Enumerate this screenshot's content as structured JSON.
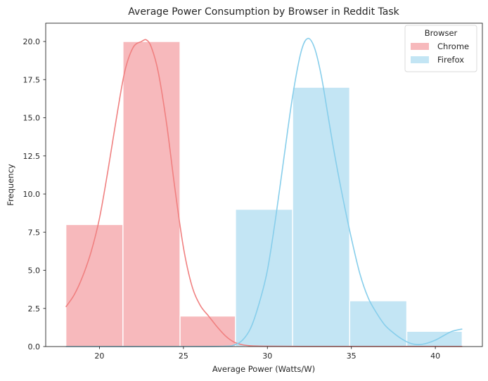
{
  "chart_data": {
    "type": "histogram",
    "title": "Average Power Consumption by Browser in Reddit Task",
    "xlabel": "Average Power (Watts/W)",
    "ylabel": "Frequency",
    "xlim": [
      16.8,
      42.8
    ],
    "ylim": [
      0,
      21.2
    ],
    "xticks": [
      20,
      25,
      30,
      35,
      40
    ],
    "yticks": [
      0.0,
      2.5,
      5.0,
      7.5,
      10.0,
      12.5,
      15.0,
      17.5,
      20.0
    ],
    "grid": false,
    "legend": {
      "title": "Browser",
      "placement": "top-right"
    },
    "series": [
      {
        "name": "Chrome",
        "bar_color": "#f7b9bc",
        "kde_color": "#f08080",
        "bins": [
          {
            "x0": 18.0,
            "x1": 21.4,
            "count": 8
          },
          {
            "x0": 21.4,
            "x1": 24.8,
            "count": 20
          },
          {
            "x0": 24.8,
            "x1": 28.1,
            "count": 2
          }
        ],
        "kde": [
          [
            18.0,
            2.6
          ],
          [
            18.5,
            3.4
          ],
          [
            19.0,
            4.6
          ],
          [
            19.5,
            6.2
          ],
          [
            20.0,
            8.4
          ],
          [
            20.5,
            11.5
          ],
          [
            21.0,
            14.9
          ],
          [
            21.5,
            18.0
          ],
          [
            22.0,
            19.6
          ],
          [
            22.5,
            20.0
          ],
          [
            22.8,
            20.1
          ],
          [
            23.1,
            19.6
          ],
          [
            23.5,
            18.0
          ],
          [
            24.0,
            14.6
          ],
          [
            24.5,
            10.3
          ],
          [
            25.0,
            6.5
          ],
          [
            25.5,
            4.0
          ],
          [
            26.0,
            2.7
          ],
          [
            26.5,
            2.0
          ],
          [
            27.0,
            1.3
          ],
          [
            27.5,
            0.7
          ],
          [
            28.0,
            0.3
          ],
          [
            28.5,
            0.12
          ],
          [
            29.0,
            0.05
          ],
          [
            30.0,
            0.02
          ],
          [
            32.0,
            0.01
          ],
          [
            35.0,
            0.01
          ],
          [
            38.0,
            0.01
          ],
          [
            41.6,
            0.01
          ]
        ]
      },
      {
        "name": "Firefox",
        "bar_color": "#c3e5f4",
        "kde_color": "#87ceeb",
        "bins": [
          {
            "x0": 28.1,
            "x1": 31.5,
            "count": 9
          },
          {
            "x0": 31.5,
            "x1": 34.9,
            "count": 17
          },
          {
            "x0": 34.9,
            "x1": 38.3,
            "count": 3
          },
          {
            "x0": 38.3,
            "x1": 41.6,
            "count": 1
          }
        ],
        "kde": [
          [
            18.0,
            0.0
          ],
          [
            25.0,
            0.0
          ],
          [
            27.5,
            0.02
          ],
          [
            28.0,
            0.1
          ],
          [
            28.5,
            0.4
          ],
          [
            29.0,
            1.2
          ],
          [
            29.5,
            2.8
          ],
          [
            30.0,
            5.0
          ],
          [
            30.5,
            8.5
          ],
          [
            31.0,
            12.5
          ],
          [
            31.5,
            16.4
          ],
          [
            32.0,
            19.3
          ],
          [
            32.4,
            20.2
          ],
          [
            32.8,
            19.6
          ],
          [
            33.2,
            17.8
          ],
          [
            33.6,
            15.2
          ],
          [
            34.0,
            12.6
          ],
          [
            34.5,
            9.7
          ],
          [
            35.0,
            7.1
          ],
          [
            35.5,
            4.8
          ],
          [
            36.0,
            3.2
          ],
          [
            36.5,
            2.2
          ],
          [
            37.0,
            1.4
          ],
          [
            37.5,
            0.9
          ],
          [
            38.0,
            0.5
          ],
          [
            38.5,
            0.22
          ],
          [
            39.0,
            0.13
          ],
          [
            39.5,
            0.22
          ],
          [
            40.0,
            0.42
          ],
          [
            40.5,
            0.72
          ],
          [
            41.0,
            1.0
          ],
          [
            41.6,
            1.15
          ]
        ]
      }
    ]
  }
}
